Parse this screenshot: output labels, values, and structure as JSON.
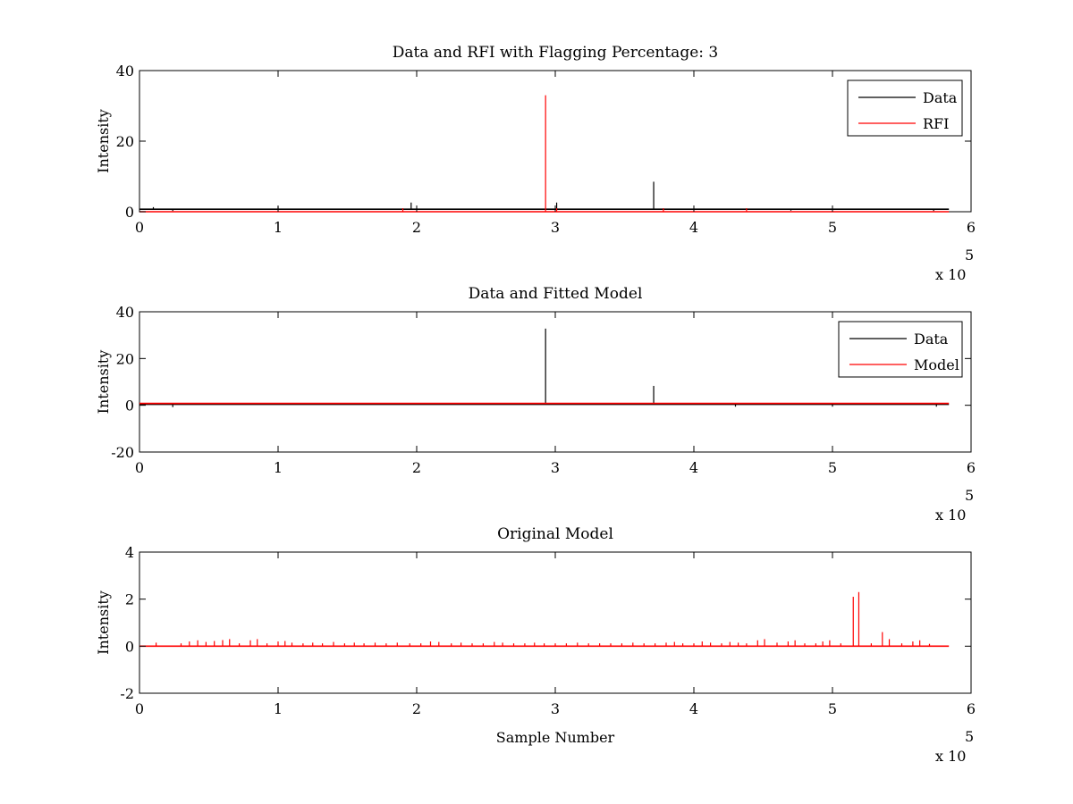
{
  "colors": {
    "data": "#000000",
    "model": "#ff0000",
    "background": "#ffffff",
    "axes": "#000000"
  },
  "chart_data": [
    {
      "type": "line",
      "title": "Data and RFI with Flagging Percentage: 3",
      "xlabel": "",
      "ylabel": "Intensity",
      "xlim": [
        0,
        600000
      ],
      "ylim": [
        0,
        40
      ],
      "xticks": [
        "0",
        "1",
        "2",
        "3",
        "4",
        "5",
        "6"
      ],
      "yticks": [
        "0",
        "20",
        "40"
      ],
      "exponent_label": "x 10",
      "exponent_power": "5",
      "legend": {
        "placement": "top-right",
        "entries": [
          "Data",
          "RFI"
        ]
      },
      "series": [
        {
          "name": "Data",
          "color": "#000000",
          "baseline": 0.7,
          "x_end": 584000,
          "spikes": [
            {
              "x": 10000,
              "y": 1.3
            },
            {
              "x": 24000,
              "y": 0.2
            },
            {
              "x": 100000,
              "y": 1.5
            },
            {
              "x": 196000,
              "y": 2.6
            },
            {
              "x": 301000,
              "y": 2.6
            },
            {
              "x": 371000,
              "y": 8.5
            },
            {
              "x": 470000,
              "y": 0.3
            },
            {
              "x": 573000,
              "y": 0.2
            }
          ]
        },
        {
          "name": "RFI",
          "color": "#ff0000",
          "baseline": 0.0,
          "x_end": 584000,
          "spikes": [
            {
              "x": 190000,
              "y": 1.0
            },
            {
              "x": 293000,
              "y": 33.0
            },
            {
              "x": 301000,
              "y": 1.0
            },
            {
              "x": 378000,
              "y": 1.0
            },
            {
              "x": 438000,
              "y": 1.0
            }
          ]
        }
      ]
    },
    {
      "type": "line",
      "title": "Data and Fitted Model",
      "xlabel": "",
      "ylabel": "Intensity",
      "xlim": [
        0,
        600000
      ],
      "ylim": [
        -20,
        40
      ],
      "xticks": [
        "0",
        "1",
        "2",
        "3",
        "4",
        "5",
        "6"
      ],
      "yticks": [
        "-20",
        "0",
        "20",
        "40"
      ],
      "exponent_label": "x 10",
      "exponent_power": "5",
      "legend": {
        "placement": "top-right",
        "entries": [
          "Data",
          "Model"
        ]
      },
      "series": [
        {
          "name": "Data",
          "color": "#000000",
          "baseline": 0.4,
          "x_end": 584000,
          "spikes": [
            {
              "x": 24000,
              "y": -0.8
            },
            {
              "x": 293000,
              "y": 32.8
            },
            {
              "x": 371000,
              "y": 8.3
            },
            {
              "x": 430000,
              "y": -0.6
            },
            {
              "x": 500000,
              "y": -0.6
            },
            {
              "x": 575000,
              "y": -0.6
            }
          ]
        },
        {
          "name": "Model",
          "color": "#ff0000",
          "baseline": 0.8,
          "x_end": 584000,
          "spikes": []
        }
      ]
    },
    {
      "type": "line",
      "title": "Original Model",
      "xlabel": "Sample Number",
      "ylabel": "Intensity",
      "xlim": [
        0,
        600000
      ],
      "ylim": [
        -2,
        4
      ],
      "xticks": [
        "0",
        "1",
        "2",
        "3",
        "4",
        "5",
        "6"
      ],
      "yticks": [
        "-2",
        "0",
        "2",
        "4"
      ],
      "exponent_label": "x 10",
      "exponent_power": "5",
      "series": [
        {
          "name": "Original Model",
          "color": "#ff0000",
          "baseline": 0.0,
          "x_end": 584000,
          "spikes": [
            {
              "x": 12000,
              "y": 0.15
            },
            {
              "x": 30000,
              "y": 0.12
            },
            {
              "x": 36000,
              "y": 0.2
            },
            {
              "x": 42000,
              "y": 0.25
            },
            {
              "x": 48000,
              "y": 0.18
            },
            {
              "x": 54000,
              "y": 0.22
            },
            {
              "x": 60000,
              "y": 0.26
            },
            {
              "x": 65000,
              "y": 0.3
            },
            {
              "x": 72000,
              "y": 0.12
            },
            {
              "x": 80000,
              "y": 0.25
            },
            {
              "x": 85000,
              "y": 0.3
            },
            {
              "x": 92000,
              "y": 0.12
            },
            {
              "x": 100000,
              "y": 0.2
            },
            {
              "x": 105000,
              "y": 0.22
            },
            {
              "x": 110000,
              "y": 0.15
            },
            {
              "x": 118000,
              "y": 0.12
            },
            {
              "x": 125000,
              "y": 0.15
            },
            {
              "x": 132000,
              "y": 0.12
            },
            {
              "x": 140000,
              "y": 0.18
            },
            {
              "x": 148000,
              "y": 0.12
            },
            {
              "x": 155000,
              "y": 0.15
            },
            {
              "x": 162000,
              "y": 0.12
            },
            {
              "x": 170000,
              "y": 0.15
            },
            {
              "x": 178000,
              "y": 0.12
            },
            {
              "x": 186000,
              "y": 0.15
            },
            {
              "x": 195000,
              "y": 0.12
            },
            {
              "x": 203000,
              "y": 0.12
            },
            {
              "x": 210000,
              "y": 0.2
            },
            {
              "x": 216000,
              "y": 0.18
            },
            {
              "x": 225000,
              "y": 0.12
            },
            {
              "x": 232000,
              "y": 0.15
            },
            {
              "x": 240000,
              "y": 0.12
            },
            {
              "x": 248000,
              "y": 0.12
            },
            {
              "x": 256000,
              "y": 0.18
            },
            {
              "x": 262000,
              "y": 0.15
            },
            {
              "x": 270000,
              "y": 0.12
            },
            {
              "x": 278000,
              "y": 0.12
            },
            {
              "x": 285000,
              "y": 0.15
            },
            {
              "x": 292000,
              "y": 0.12
            },
            {
              "x": 300000,
              "y": 0.12
            },
            {
              "x": 308000,
              "y": 0.12
            },
            {
              "x": 316000,
              "y": 0.15
            },
            {
              "x": 324000,
              "y": 0.12
            },
            {
              "x": 332000,
              "y": 0.12
            },
            {
              "x": 340000,
              "y": 0.12
            },
            {
              "x": 348000,
              "y": 0.12
            },
            {
              "x": 356000,
              "y": 0.15
            },
            {
              "x": 364000,
              "y": 0.12
            },
            {
              "x": 372000,
              "y": 0.12
            },
            {
              "x": 380000,
              "y": 0.15
            },
            {
              "x": 386000,
              "y": 0.18
            },
            {
              "x": 392000,
              "y": 0.12
            },
            {
              "x": 400000,
              "y": 0.12
            },
            {
              "x": 406000,
              "y": 0.2
            },
            {
              "x": 412000,
              "y": 0.15
            },
            {
              "x": 420000,
              "y": 0.12
            },
            {
              "x": 426000,
              "y": 0.18
            },
            {
              "x": 432000,
              "y": 0.15
            },
            {
              "x": 438000,
              "y": 0.12
            },
            {
              "x": 446000,
              "y": 0.25
            },
            {
              "x": 451000,
              "y": 0.3
            },
            {
              "x": 460000,
              "y": 0.15
            },
            {
              "x": 468000,
              "y": 0.2
            },
            {
              "x": 473000,
              "y": 0.25
            },
            {
              "x": 480000,
              "y": 0.12
            },
            {
              "x": 488000,
              "y": 0.12
            },
            {
              "x": 493000,
              "y": 0.2
            },
            {
              "x": 498000,
              "y": 0.25
            },
            {
              "x": 506000,
              "y": 0.12
            },
            {
              "x": 515000,
              "y": 2.1
            },
            {
              "x": 519000,
              "y": 2.3
            },
            {
              "x": 528000,
              "y": 0.12
            },
            {
              "x": 536000,
              "y": 0.6
            },
            {
              "x": 541000,
              "y": 0.3
            },
            {
              "x": 550000,
              "y": 0.12
            },
            {
              "x": 558000,
              "y": 0.2
            },
            {
              "x": 563000,
              "y": 0.25
            },
            {
              "x": 570000,
              "y": 0.1
            }
          ]
        }
      ]
    }
  ]
}
